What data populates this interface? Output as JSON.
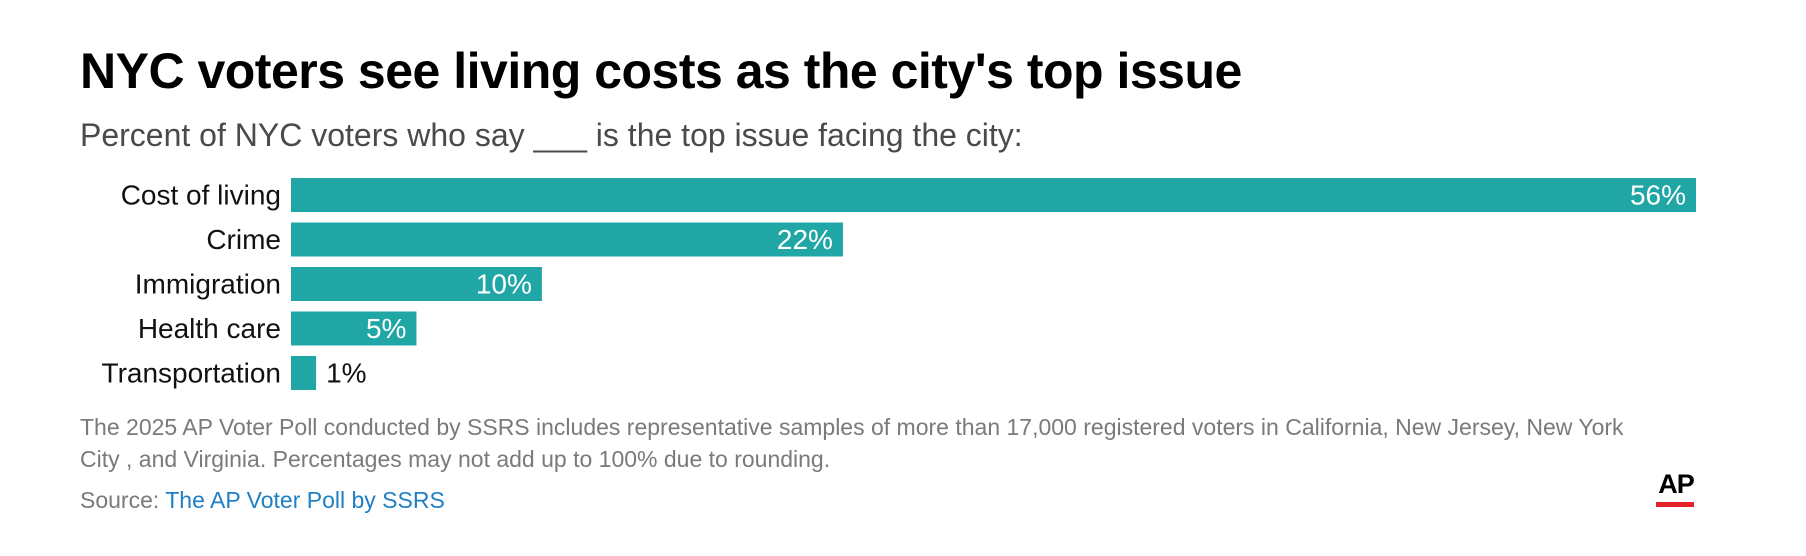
{
  "title": "NYC voters see living costs as the city's top issue",
  "subtitle": "Percent of NYC voters who say ___ is the top issue facing the city:",
  "chart_data": {
    "type": "bar",
    "orientation": "horizontal",
    "categories": [
      "Cost of living",
      "Crime",
      "Immigration",
      "Health care",
      "Transportation"
    ],
    "values": [
      56,
      22,
      10,
      5,
      1
    ],
    "value_labels": [
      "56%",
      "22%",
      "10%",
      "5%",
      "1%"
    ],
    "unit": "%",
    "xlim": [
      0,
      56
    ],
    "grid": false,
    "bar_color": "#20a7a5"
  },
  "note": "The 2025 AP Voter Poll conducted by SSRS includes representative samples of more than 17,000 registered voters in California, New Jersey, New York City , and Virginia. Percentages may not add up to 100% due to rounding.",
  "source": {
    "label": "Source:",
    "link_text": "The AP Voter Poll by SSRS"
  },
  "logo": {
    "text": "AP",
    "accent_color": "#e4222a"
  }
}
